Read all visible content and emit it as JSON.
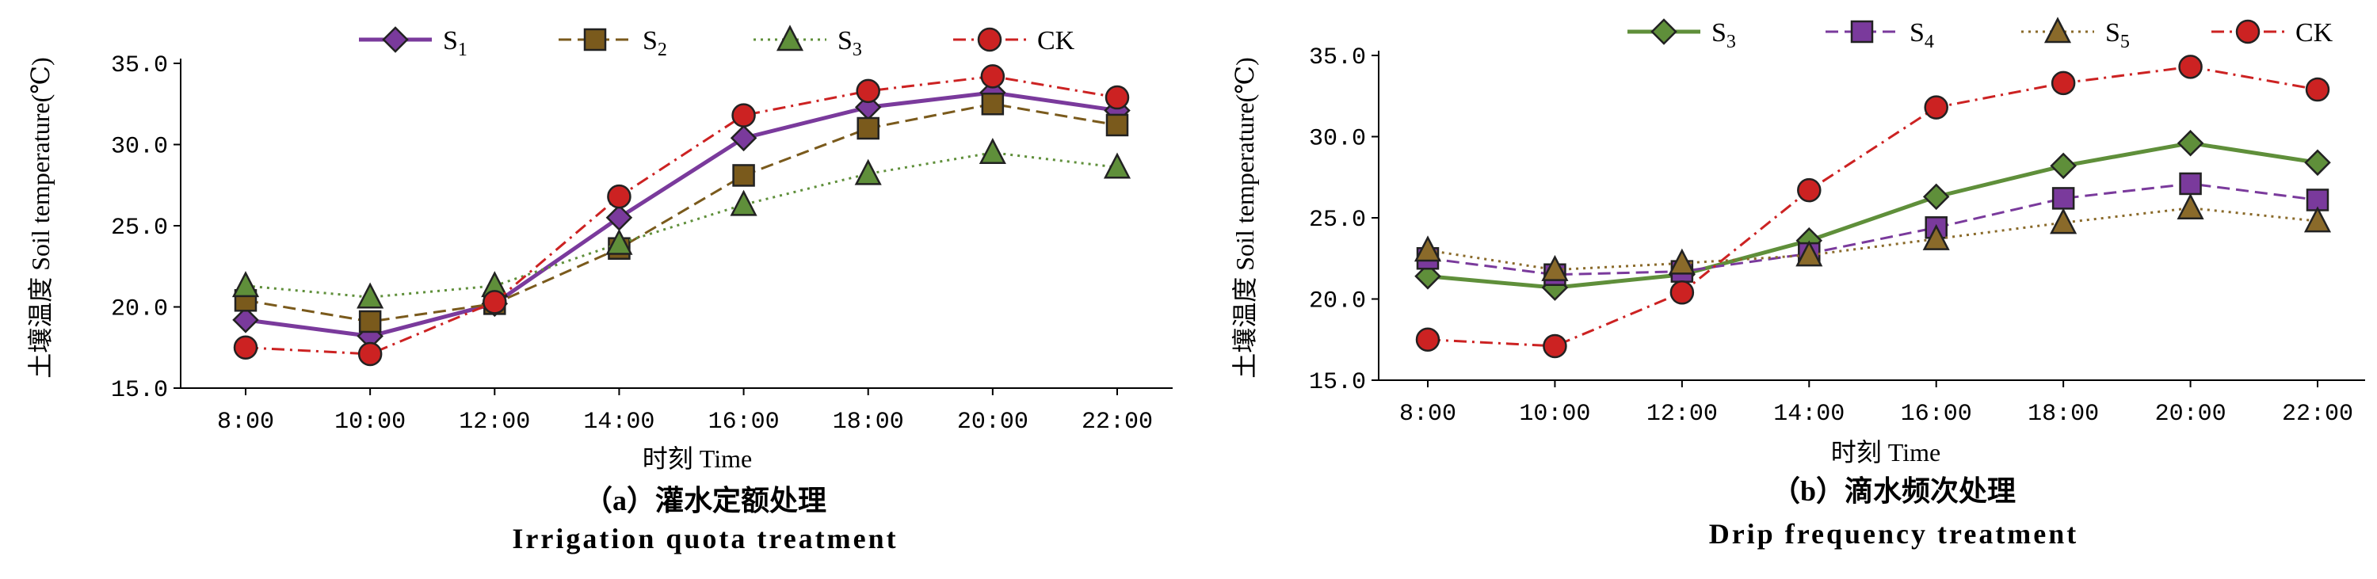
{
  "chart_data": [
    {
      "type": "line",
      "categories": [
        "8:00",
        "10:00",
        "12:00",
        "14:00",
        "16:00",
        "18:00",
        "20:00",
        "22:00"
      ],
      "series": [
        {
          "name": "S1",
          "values": [
            19.2,
            18.2,
            20.2,
            25.5,
            30.4,
            32.3,
            33.2,
            32.1
          ],
          "color": "#7a3a9c",
          "marker": "diamond",
          "dash": "solid"
        },
        {
          "name": "S2",
          "values": [
            20.4,
            19.1,
            20.2,
            23.6,
            28.1,
            31.0,
            32.5,
            31.2
          ],
          "color": "#7a5a1c",
          "marker": "square",
          "dash": "dashed"
        },
        {
          "name": "S3",
          "values": [
            21.3,
            20.6,
            21.3,
            23.9,
            26.3,
            28.2,
            29.5,
            28.6
          ],
          "color": "#5f8f3a",
          "marker": "triangle",
          "dash": "dotted"
        },
        {
          "name": "CK",
          "values": [
            17.5,
            17.1,
            20.3,
            26.8,
            31.8,
            33.3,
            34.2,
            32.9
          ],
          "color": "#cc2222",
          "marker": "circle",
          "dash": "dashdot"
        }
      ],
      "legend_labels": [
        {
          "base": "S",
          "sub": "1"
        },
        {
          "base": "S",
          "sub": "2"
        },
        {
          "base": "S",
          "sub": "3"
        },
        {
          "base": "CK",
          "sub": ""
        }
      ],
      "ylim": [
        15,
        35
      ],
      "yticks": [
        "15.0",
        "20.0",
        "25.0",
        "30.0",
        "35.0"
      ],
      "ylabel": "土壤温度 Soil temperature(℃)",
      "xlabel": "时刻 Time",
      "caption_cn": "（a）灌水定额处理",
      "caption_en": "Irrigation quota treatment",
      "grid": false,
      "legend_position": "top"
    },
    {
      "type": "line",
      "categories": [
        "8:00",
        "10:00",
        "12:00",
        "14:00",
        "16:00",
        "18:00",
        "20:00",
        "22:00"
      ],
      "series": [
        {
          "name": "S3",
          "values": [
            21.4,
            20.7,
            21.5,
            23.6,
            26.3,
            28.2,
            29.6,
            28.4
          ],
          "color": "#5f8f3a",
          "marker": "diamond",
          "dash": "solid"
        },
        {
          "name": "S4",
          "values": [
            22.5,
            21.5,
            21.7,
            22.8,
            24.4,
            26.2,
            27.1,
            26.1
          ],
          "color": "#7a3a9c",
          "marker": "square",
          "dash": "dashed"
        },
        {
          "name": "S5",
          "values": [
            23.0,
            21.8,
            22.2,
            22.7,
            23.7,
            24.7,
            25.6,
            24.8
          ],
          "color": "#8a6a2a",
          "marker": "triangle",
          "dash": "dotted"
        },
        {
          "name": "CK",
          "values": [
            17.5,
            17.1,
            20.4,
            26.7,
            31.8,
            33.3,
            34.3,
            32.9
          ],
          "color": "#cc2222",
          "marker": "circle",
          "dash": "dashdot"
        }
      ],
      "legend_labels": [
        {
          "base": "S",
          "sub": "3"
        },
        {
          "base": "S",
          "sub": "4"
        },
        {
          "base": "S",
          "sub": "5"
        },
        {
          "base": "CK",
          "sub": ""
        }
      ],
      "ylim": [
        15,
        35
      ],
      "yticks": [
        "15.0",
        "20.0",
        "25.0",
        "30.0",
        "35.0"
      ],
      "ylabel": "土壤温度 Soil temperature(℃)",
      "xlabel": "时刻 Time",
      "caption_cn": "（b）滴水频次处理",
      "caption_en": "Drip frequency treatment",
      "grid": false,
      "legend_position": "top"
    }
  ]
}
